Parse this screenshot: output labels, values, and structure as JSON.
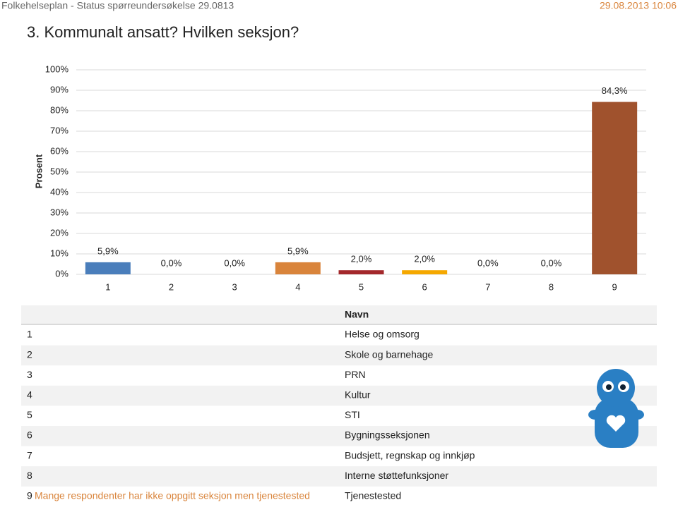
{
  "header": {
    "left": "Folkehelseplan - Status spørreundersøkelse 29.0813",
    "right": "29.08.2013 10:06"
  },
  "chart_data": {
    "type": "bar",
    "title": "3. Kommunalt ansatt? Hvilken seksjon?",
    "y_label": "Prosent",
    "categories": [
      "1",
      "2",
      "3",
      "4",
      "5",
      "6",
      "7",
      "8",
      "9"
    ],
    "values": [
      5.9,
      0,
      0,
      5.9,
      2.0,
      2.0,
      0,
      0,
      84.3
    ],
    "value_labels": [
      "5,9%",
      "0,0%",
      "0,0%",
      "5,9%",
      "2,0%",
      "2,0%",
      "0,0%",
      "0,0%",
      "84,3%"
    ],
    "colors": [
      "#4a7ebb",
      "#6a9a3a",
      "#7a5a9a",
      "#d9843b",
      "#a3282b",
      "#f5a800",
      "#3a9ab0",
      "#8a8a8a",
      "#a0522d"
    ],
    "ylim": [
      0,
      100
    ],
    "yticks": [
      {
        "value": 0,
        "label": "0%"
      },
      {
        "value": 10,
        "label": "10%"
      },
      {
        "value": 20,
        "label": "20%"
      },
      {
        "value": 30,
        "label": "30%"
      },
      {
        "value": 40,
        "label": "40%"
      },
      {
        "value": 50,
        "label": "50%"
      },
      {
        "value": 60,
        "label": "60%"
      },
      {
        "value": 70,
        "label": "70%"
      },
      {
        "value": 80,
        "label": "80%"
      },
      {
        "value": 90,
        "label": "90%"
      },
      {
        "value": 100,
        "label": "100%"
      }
    ],
    "grid": true
  },
  "table": {
    "header": "Navn",
    "rows": [
      {
        "number": "1",
        "name": "Helse og omsorg"
      },
      {
        "number": "2",
        "name": "Skole og barnehage"
      },
      {
        "number": "3",
        "name": "PRN"
      },
      {
        "number": "4",
        "name": "Kultur"
      },
      {
        "number": "5",
        "name": "STI"
      },
      {
        "number": "6",
        "name": "Bygningsseksjonen"
      },
      {
        "number": "7",
        "name": "Budsjett, regnskap og innkjøp"
      },
      {
        "number": "8",
        "name": "Interne støttefunksjoner"
      },
      {
        "number": "9",
        "note": "Mange respondenter har ikke oppgitt seksjon men tjenestested",
        "name": "Tjenestested"
      }
    ]
  }
}
